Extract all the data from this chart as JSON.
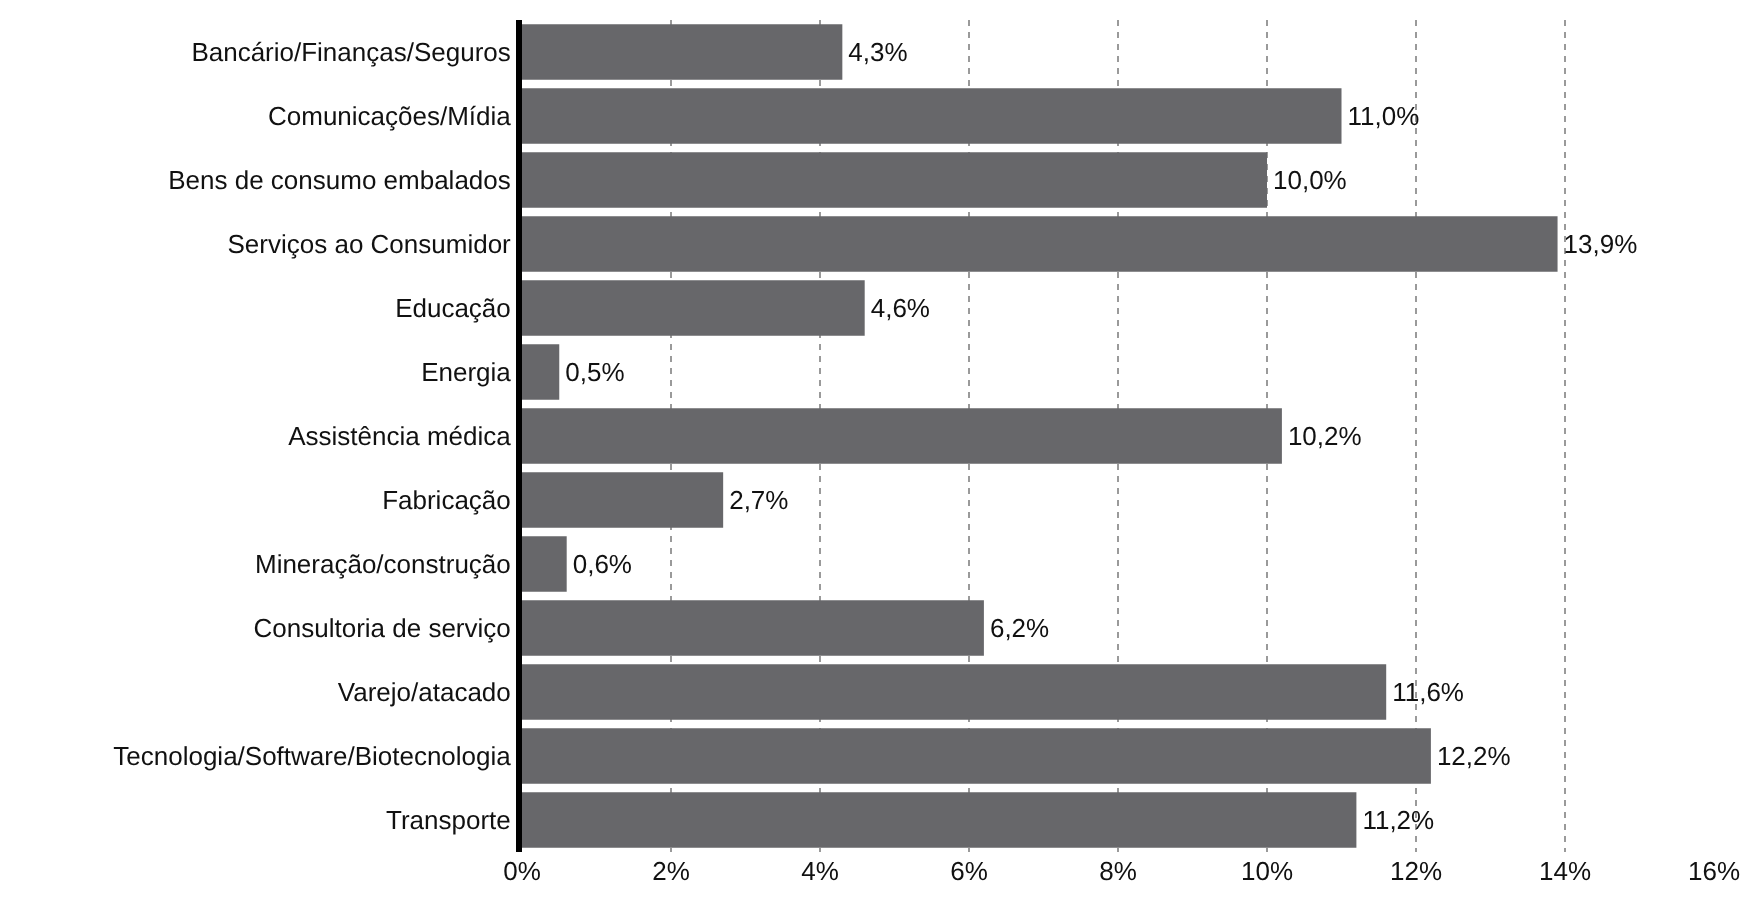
{
  "chart_data": {
    "type": "bar",
    "orientation": "horizontal",
    "categories": [
      "Bancário/Finanças/Seguros",
      "Comunicações/Mídia",
      "Bens de consumo embalados",
      "Serviços ao Consumidor",
      "Educação",
      "Energia",
      "Assistência médica",
      "Fabricação",
      "Mineração/construção",
      "Consultoria de serviço",
      "Varejo/atacado",
      "Tecnologia/Software/Biotecnologia",
      "Transporte"
    ],
    "values": [
      4.3,
      11.0,
      10.0,
      13.9,
      4.6,
      0.5,
      10.2,
      2.7,
      0.6,
      6.2,
      11.6,
      12.2,
      11.2
    ],
    "value_labels": [
      "4,3%",
      "11,0%",
      "10,0%",
      "13,9%",
      "4,6%",
      "0,5%",
      "10,2%",
      "2,7%",
      "0,6%",
      "6,2%",
      "11,6%",
      "12,2%",
      "11,2%"
    ],
    "color": "#67676a",
    "xlim": [
      0,
      16
    ],
    "xticks": [
      {
        "value": 0,
        "label": "0%"
      },
      {
        "value": 2,
        "label": "2%"
      },
      {
        "value": 4,
        "label": "4%"
      },
      {
        "value": 6,
        "label": "6%"
      },
      {
        "value": 8,
        "label": "8%"
      },
      {
        "value": 10,
        "label": "10%"
      },
      {
        "value": 12,
        "label": "12%"
      },
      {
        "value": 14,
        "label": "14%"
      },
      {
        "value": 16,
        "label": "16%"
      }
    ],
    "grid": "x"
  }
}
